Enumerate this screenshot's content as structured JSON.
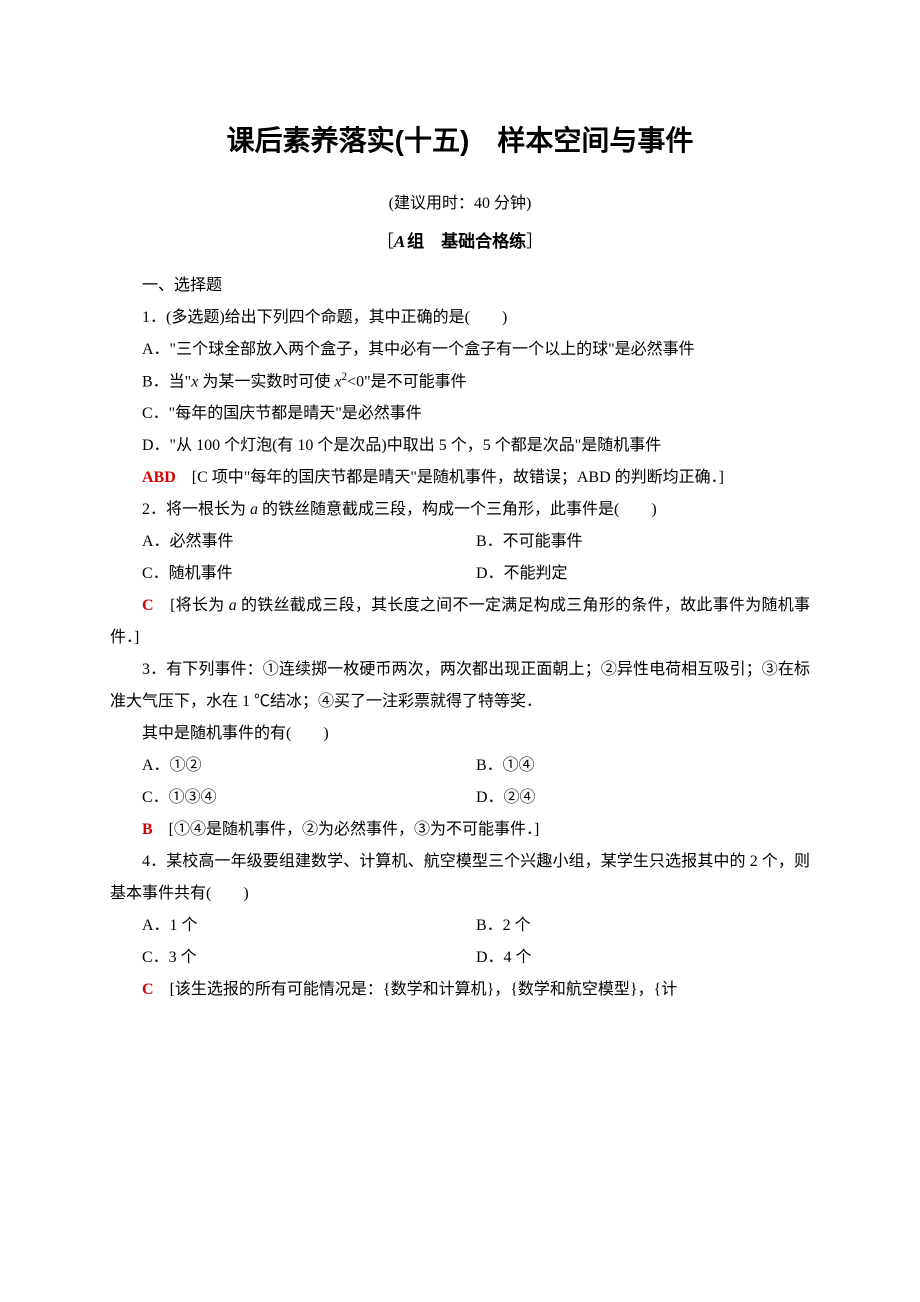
{
  "title": "课后素养落实(十五)　样本空间与事件",
  "subtitle": "(建议用时：40 分钟)",
  "group_label": {
    "left_bracket": "［",
    "a": "A",
    "group_text": "组　基础合格练",
    "right_bracket": "］"
  },
  "sec1": "一、选择题",
  "q1": {
    "stem": "1．(多选题)给出下列四个命题，其中正确的是(　　)",
    "optA": "A．\"三个球全部放入两个盒子，其中必有一个盒子有一个以上的球\"是必然事件",
    "optB_pre": "B．当\"",
    "optB_var": "x",
    "optB_mid": " 为某一实数时可使 ",
    "optB_var2": "x",
    "optB_sup": "2",
    "optB_post": "<0\"是不可能事件",
    "optC": "C．\"每年的国庆节都是晴天\"是必然事件",
    "optD": "D．\"从 100 个灯泡(有 10 个是次品)中取出 5 个，5 个都是次品\"是随机事件",
    "ans": "ABD",
    "explain": "　[C 项中\"每年的国庆节都是晴天\"是随机事件，故错误；ABD 的判断均正确．]"
  },
  "q2": {
    "stem_pre": "2．将一根长为 ",
    "stem_var": "a",
    "stem_post": " 的铁丝随意截成三段，构成一个三角形，此事件是(　　)",
    "optA": "A．必然事件",
    "optB": "B．不可能事件",
    "optC": "C．随机事件",
    "optD": "D．不能判定",
    "ans": "C",
    "explain_pre": "　[将长为 ",
    "explain_var": "a",
    "explain_post": " 的铁丝截成三段，其长度之间不一定满足构成三角形的条件，故此事件为随机事件．]"
  },
  "q3": {
    "stem1": "3．有下列事件：①连续掷一枚硬币两次，两次都出现正面朝上；②异性电荷相互吸引；③在标准大气压下，水在 1 ℃结冰；④买了一注彩票就得了特等奖．",
    "stem2": "其中是随机事件的有(　　)",
    "optA": "A．①②",
    "optB": "B．①④",
    "optC": "C．①③④",
    "optD": "D．②④",
    "ans": "B",
    "explain": "　[①④是随机事件，②为必然事件，③为不可能事件．]"
  },
  "q4": {
    "stem": "4．某校高一年级要组建数学、计算机、航空模型三个兴趣小组，某学生只选报其中的 2 个，则基本事件共有(　　)",
    "optA": "A．1 个",
    "optB": "B．2 个",
    "optC": "C．3 个",
    "optD": "D．4 个",
    "ans": "C",
    "explain": "　[该生选报的所有可能情况是：{数学和计算机}，{数学和航空模型}，{计"
  },
  "colors": {
    "text": "#000000",
    "answer": "#d60000",
    "background": "#ffffff"
  }
}
